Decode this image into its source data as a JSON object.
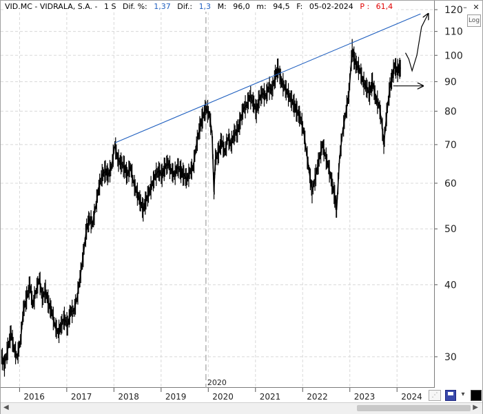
{
  "info_bar": {
    "ticker": "VID.MC - VIDRALA, S.A. -",
    "period": "1 S",
    "dif_pct_label": "Dif. %:",
    "dif_pct_value": "1,37",
    "dif_label": "Dif.:",
    "dif_value": "1,3",
    "max_label": "M:",
    "max_value": "96,0",
    "min_label": "m:",
    "min_value": "94,5",
    "date_label": "F:",
    "date_value": "05-02-2024",
    "p_label": "P :",
    "p_value": "61,4"
  },
  "toolbar": {
    "log_label": "Log",
    "minimize_icon": "–",
    "close_icon": "✕"
  },
  "colors": {
    "price": "#000000",
    "trendline": "#1f5fbf",
    "grid": "#d8d8d8",
    "crosshair": "#a0a0a0",
    "up": "#1f5fbf",
    "down": "#e00000"
  },
  "chart_data": {
    "type": "line",
    "scale": "log",
    "title": "",
    "xlabel": "",
    "ylabel": "",
    "ylim": [
      26.5,
      121
    ],
    "xlim": [
      2015.6,
      2024.8
    ],
    "grid": true,
    "y_ticks": [
      30,
      40,
      50,
      60,
      70,
      80,
      90,
      100,
      110,
      120
    ],
    "x_ticks": [
      {
        "label": "2016",
        "x": 2016.0
      },
      {
        "label": "2017",
        "x": 2017.0
      },
      {
        "label": "2018",
        "x": 2018.0
      },
      {
        "label": "2019",
        "x": 2019.0
      },
      {
        "label": "2020",
        "x": 2020.0
      },
      {
        "label": "2021",
        "x": 2021.0
      },
      {
        "label": "2022",
        "x": 2022.0
      },
      {
        "label": "2023",
        "x": 2023.0
      },
      {
        "label": "2024",
        "x": 2024.0
      }
    ],
    "crosshair_label": "2020",
    "crosshair_x": 2019.95,
    "series": [
      {
        "points": [
          [
            2015.62,
            30
          ],
          [
            2015.68,
            29
          ],
          [
            2015.75,
            31
          ],
          [
            2015.82,
            33
          ],
          [
            2015.88,
            31
          ],
          [
            2015.95,
            30
          ],
          [
            2016.02,
            32
          ],
          [
            2016.08,
            36
          ],
          [
            2016.15,
            38
          ],
          [
            2016.22,
            40
          ],
          [
            2016.28,
            37
          ],
          [
            2016.35,
            39
          ],
          [
            2016.42,
            41
          ],
          [
            2016.48,
            38
          ],
          [
            2016.55,
            39
          ],
          [
            2016.62,
            37
          ],
          [
            2016.68,
            36
          ],
          [
            2016.75,
            34
          ],
          [
            2016.82,
            33
          ],
          [
            2016.88,
            34
          ],
          [
            2016.95,
            35
          ],
          [
            2017.02,
            34
          ],
          [
            2017.08,
            36
          ],
          [
            2017.15,
            36
          ],
          [
            2017.22,
            38
          ],
          [
            2017.28,
            41
          ],
          [
            2017.35,
            45
          ],
          [
            2017.42,
            50
          ],
          [
            2017.48,
            52
          ],
          [
            2017.55,
            51
          ],
          [
            2017.62,
            55
          ],
          [
            2017.68,
            59
          ],
          [
            2017.75,
            62
          ],
          [
            2017.82,
            63
          ],
          [
            2017.88,
            62
          ],
          [
            2017.95,
            64
          ],
          [
            2018.02,
            70
          ],
          [
            2018.08,
            66
          ],
          [
            2018.15,
            65
          ],
          [
            2018.22,
            64
          ],
          [
            2018.28,
            62
          ],
          [
            2018.35,
            64
          ],
          [
            2018.42,
            60
          ],
          [
            2018.48,
            58
          ],
          [
            2018.55,
            56
          ],
          [
            2018.62,
            54
          ],
          [
            2018.68,
            56
          ],
          [
            2018.75,
            58
          ],
          [
            2018.82,
            60
          ],
          [
            2018.88,
            62
          ],
          [
            2018.95,
            63
          ],
          [
            2019.02,
            62
          ],
          [
            2019.08,
            64
          ],
          [
            2019.15,
            65
          ],
          [
            2019.22,
            63
          ],
          [
            2019.28,
            62
          ],
          [
            2019.35,
            64
          ],
          [
            2019.42,
            63
          ],
          [
            2019.48,
            62
          ],
          [
            2019.55,
            61
          ],
          [
            2019.62,
            63
          ],
          [
            2019.68,
            64
          ],
          [
            2019.75,
            70
          ],
          [
            2019.82,
            75
          ],
          [
            2019.88,
            78
          ],
          [
            2019.95,
            81
          ],
          [
            2020.02,
            79
          ],
          [
            2020.08,
            73
          ],
          [
            2020.12,
            58
          ],
          [
            2020.15,
            66
          ],
          [
            2020.22,
            68
          ],
          [
            2020.28,
            71
          ],
          [
            2020.35,
            68
          ],
          [
            2020.42,
            72
          ],
          [
            2020.48,
            70
          ],
          [
            2020.55,
            73
          ],
          [
            2020.62,
            74
          ],
          [
            2020.68,
            77
          ],
          [
            2020.75,
            81
          ],
          [
            2020.82,
            82
          ],
          [
            2020.88,
            85
          ],
          [
            2020.95,
            83
          ],
          [
            2021.02,
            80
          ],
          [
            2021.08,
            84
          ],
          [
            2021.15,
            86
          ],
          [
            2021.22,
            85
          ],
          [
            2021.28,
            88
          ],
          [
            2021.35,
            87
          ],
          [
            2021.42,
            92
          ],
          [
            2021.48,
            95
          ],
          [
            2021.55,
            90
          ],
          [
            2021.62,
            88
          ],
          [
            2021.68,
            86
          ],
          [
            2021.75,
            84
          ],
          [
            2021.82,
            82
          ],
          [
            2021.88,
            80
          ],
          [
            2021.95,
            78
          ],
          [
            2022.02,
            74
          ],
          [
            2022.08,
            68
          ],
          [
            2022.15,
            62
          ],
          [
            2022.2,
            58
          ],
          [
            2022.28,
            62
          ],
          [
            2022.35,
            66
          ],
          [
            2022.42,
            70
          ],
          [
            2022.48,
            67
          ],
          [
            2022.55,
            64
          ],
          [
            2022.62,
            60
          ],
          [
            2022.68,
            57
          ],
          [
            2022.72,
            54
          ],
          [
            2022.78,
            66
          ],
          [
            2022.85,
            74
          ],
          [
            2022.92,
            80
          ],
          [
            2022.98,
            86
          ],
          [
            2023.05,
            102
          ],
          [
            2023.1,
            98
          ],
          [
            2023.15,
            96
          ],
          [
            2023.22,
            94
          ],
          [
            2023.28,
            90
          ],
          [
            2023.35,
            88
          ],
          [
            2023.42,
            86
          ],
          [
            2023.48,
            90
          ],
          [
            2023.55,
            84
          ],
          [
            2023.62,
            82
          ],
          [
            2023.68,
            76
          ],
          [
            2023.72,
            70
          ],
          [
            2023.78,
            79
          ],
          [
            2023.85,
            88
          ],
          [
            2023.9,
            92
          ],
          [
            2023.95,
            96
          ],
          [
            2024.0,
            94
          ],
          [
            2024.05,
            95
          ],
          [
            2024.08,
            95
          ]
        ]
      }
    ],
    "trendline": [
      [
        2018.02,
        70.5
      ],
      [
        2024.5,
        118
      ]
    ],
    "projection": [
      [
        2024.18,
        101
      ],
      [
        2024.25,
        98.5
      ],
      [
        2024.32,
        94
      ],
      [
        2024.42,
        100
      ],
      [
        2024.52,
        112
      ],
      [
        2024.66,
        118
      ]
    ],
    "support_arrow": [
      [
        2023.92,
        88.5
      ],
      [
        2024.55,
        88.5
      ]
    ]
  }
}
